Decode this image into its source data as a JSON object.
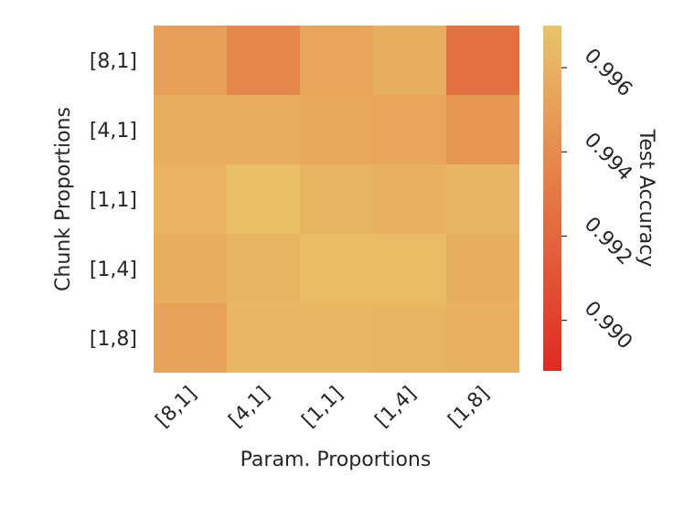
{
  "chart_data": {
    "type": "heatmap",
    "xlabel": "Param. Proportions",
    "ylabel": "Chunk Proportions",
    "x_categories": [
      "[8,1]",
      "[4,1]",
      "[1,1]",
      "[1,4]",
      "[1,8]"
    ],
    "y_categories": [
      "[8,1]",
      "[4,1]",
      "[1,1]",
      "[1,4]",
      "[1,8]"
    ],
    "values": [
      [
        0.9951,
        0.9937,
        0.9953,
        0.9959,
        0.9926
      ],
      [
        0.9958,
        0.9958,
        0.9955,
        0.9954,
        0.9946
      ],
      [
        0.9961,
        0.9968,
        0.9962,
        0.996,
        0.9962
      ],
      [
        0.9958,
        0.9962,
        0.9965,
        0.9965,
        0.9959
      ],
      [
        0.9952,
        0.9963,
        0.9963,
        0.9962,
        0.996
      ]
    ],
    "colorbar": {
      "label": "Test Accuracy",
      "range": [
        0.9888,
        0.997
      ],
      "ticks": [
        "0.990",
        "0.992",
        "0.994",
        "0.996"
      ],
      "tick_values": [
        0.99,
        0.992,
        0.994,
        0.996
      ],
      "colors": [
        "#e02a20",
        "#e9c46a"
      ]
    },
    "grid": false
  }
}
